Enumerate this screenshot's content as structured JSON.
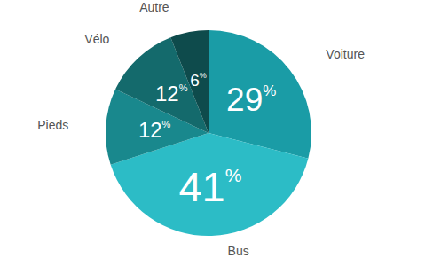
{
  "chart_data": {
    "type": "pie",
    "categories": [
      "Voiture",
      "Bus",
      "Pieds",
      "Vélo",
      "Autre"
    ],
    "values": [
      29,
      41,
      12,
      12,
      6
    ],
    "value_labels": [
      "29%",
      "41%",
      "12%",
      "12%",
      "6%"
    ],
    "colors": [
      "#1a9ca6",
      "#2cbcc6",
      "#19888d",
      "#146a6c",
      "#0e4b4c"
    ],
    "data_labels": true,
    "legend": false
  }
}
